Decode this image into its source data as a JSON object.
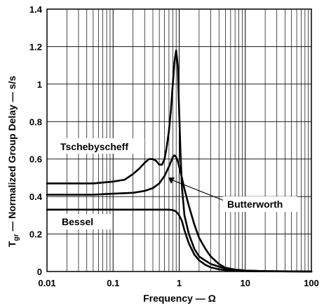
{
  "chart_data": {
    "type": "line",
    "xlabel": "Frequency — Ω",
    "ylabel_main": "T",
    "ylabel_sub": "gr",
    "ylabel_rest": " — Normalized Group Delay — s/s",
    "xscale": "log",
    "xlim": [
      0.01,
      100
    ],
    "ylim": [
      0,
      1.4
    ],
    "grid": true,
    "x_ticks": [
      0.01,
      0.1,
      1,
      10,
      100
    ],
    "x_tick_labels": [
      "0.01",
      "0.1",
      "1",
      "10",
      "100"
    ],
    "y_ticks": [
      0,
      0.2,
      0.4,
      0.6,
      0.8,
      1,
      1.2,
      1.4
    ],
    "y_tick_labels": [
      "0",
      "0.2",
      "0.4",
      "0.6",
      "0.8",
      "1",
      "1.2",
      "1.4"
    ],
    "series": [
      {
        "name": "Tschebyscheff",
        "x": [
          0.01,
          0.05,
          0.1,
          0.15,
          0.2,
          0.25,
          0.3,
          0.35,
          0.4,
          0.45,
          0.5,
          0.55,
          0.6,
          0.65,
          0.7,
          0.75,
          0.8,
          0.85,
          0.9,
          0.95,
          1.0,
          1.05,
          1.1,
          1.2,
          1.4,
          1.7,
          2,
          3,
          5,
          10,
          20,
          100
        ],
        "y": [
          0.47,
          0.47,
          0.48,
          0.49,
          0.52,
          0.55,
          0.58,
          0.6,
          0.6,
          0.59,
          0.57,
          0.57,
          0.6,
          0.67,
          0.75,
          0.86,
          1.0,
          1.12,
          1.18,
          1.1,
          0.85,
          0.62,
          0.45,
          0.3,
          0.2,
          0.12,
          0.08,
          0.04,
          0.015,
          0.005,
          0.002,
          0.0
        ]
      },
      {
        "name": "Butterworth",
        "x": [
          0.01,
          0.05,
          0.1,
          0.2,
          0.3,
          0.4,
          0.5,
          0.6,
          0.7,
          0.8,
          0.85,
          0.9,
          0.95,
          1.0,
          1.1,
          1.2,
          1.4,
          1.7,
          2,
          2.5,
          3,
          4,
          5,
          7,
          10,
          20,
          100
        ],
        "y": [
          0.41,
          0.41,
          0.415,
          0.42,
          0.43,
          0.445,
          0.47,
          0.51,
          0.56,
          0.61,
          0.62,
          0.61,
          0.59,
          0.56,
          0.5,
          0.44,
          0.35,
          0.25,
          0.18,
          0.12,
          0.08,
          0.04,
          0.02,
          0.01,
          0.005,
          0.002,
          0.0
        ]
      },
      {
        "name": "Bessel",
        "x": [
          0.01,
          0.05,
          0.1,
          0.2,
          0.3,
          0.5,
          0.7,
          0.8,
          0.9,
          1.0,
          1.1,
          1.2,
          1.4,
          1.7,
          2,
          2.5,
          3,
          4,
          5,
          7,
          10,
          20,
          100
        ],
        "y": [
          0.33,
          0.33,
          0.33,
          0.33,
          0.33,
          0.33,
          0.33,
          0.328,
          0.32,
          0.3,
          0.27,
          0.22,
          0.15,
          0.09,
          0.06,
          0.035,
          0.022,
          0.012,
          0.007,
          0.003,
          0.002,
          0.001,
          0.0
        ]
      }
    ],
    "annotations": [
      {
        "text": "Tschebyscheff",
        "series": "Tschebyscheff"
      },
      {
        "text": "Butterworth",
        "series": "Butterworth"
      },
      {
        "text": "Bessel",
        "series": "Bessel"
      }
    ]
  }
}
